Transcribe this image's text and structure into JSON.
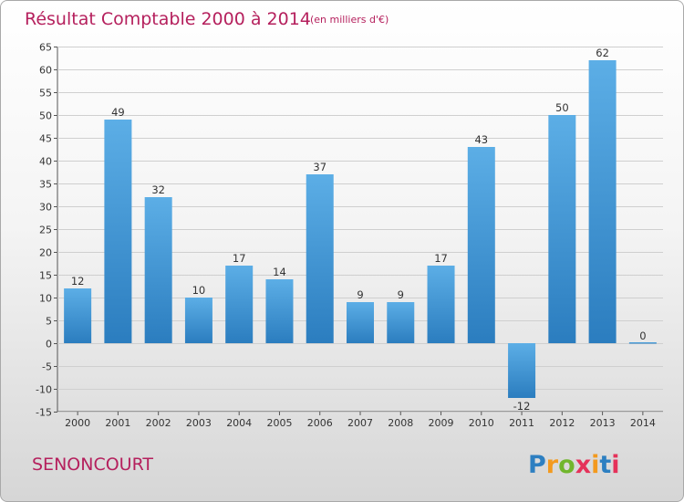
{
  "chart_data": {
    "type": "bar",
    "title": "Résultat Comptable 2000 à 2014",
    "subtitle": "(en milliers d'€)",
    "categories": [
      "2000",
      "2001",
      "2002",
      "2003",
      "2004",
      "2005",
      "2006",
      "2007",
      "2008",
      "2009",
      "2010",
      "2011",
      "2012",
      "2013",
      "2014"
    ],
    "values": [
      12,
      49,
      32,
      10,
      17,
      14,
      37,
      9,
      9,
      17,
      43,
      -12,
      50,
      62,
      0
    ],
    "value_labels": [
      "12",
      "49",
      "32",
      "10",
      "17",
      "14",
      "37",
      "9",
      "9",
      "17",
      "43",
      "-12",
      "50",
      "62",
      "0"
    ],
    "ylim": [
      -15,
      65
    ],
    "yticks": [
      -15,
      -10,
      -5,
      0,
      5,
      10,
      15,
      20,
      25,
      30,
      35,
      40,
      45,
      50,
      55,
      60,
      65
    ],
    "ytick_labels": [
      "-15",
      "-10",
      "-5",
      "0",
      "5",
      "10",
      "15",
      "20",
      "25",
      "30",
      "35",
      "40",
      "45",
      "50",
      "55",
      "60",
      "65"
    ],
    "xlabel": "",
    "ylabel": "",
    "grid": true
  },
  "commune": "SENONCOURT",
  "logo": {
    "letters": [
      "P",
      "r",
      "o",
      "x",
      "i",
      "t",
      "i"
    ],
    "colors": [
      "#2d7fc1",
      "#f39a1e",
      "#71b62d",
      "#e5325a",
      "#f39a1e",
      "#2d7fc1",
      "#e5325a"
    ]
  },
  "colors": {
    "bar_top": "#5caee6",
    "bar_bottom": "#2b7dbf",
    "title": "#b5205d",
    "grid": "#cfcfcf"
  }
}
